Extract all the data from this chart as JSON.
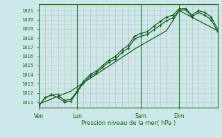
{
  "bg_color": "#cce8e8",
  "grid_color_minor": "#c8a0a0",
  "grid_color_major": "#a8c8c8",
  "line_color": "#1a5c1a",
  "xlabel": "Pression niveau de la mer( hPa )",
  "xlabel_color": "#1a5c1a",
  "tick_color": "#1a5c1a",
  "axis_color": "#2a6b2a",
  "ylim": [
    1010.4,
    1021.7
  ],
  "yticks": [
    1011,
    1012,
    1013,
    1014,
    1015,
    1016,
    1017,
    1018,
    1019,
    1020,
    1021
  ],
  "day_labels": [
    "Ven",
    "Lun",
    "Sam",
    "Dim"
  ],
  "day_positions": [
    0,
    3,
    8,
    11
  ],
  "total_steps": 14,
  "series1_x": [
    0,
    0.5,
    1.0,
    1.5,
    2.0,
    2.5,
    3.0,
    3.5,
    4.0,
    4.5,
    5.0,
    5.5,
    6.0,
    6.5,
    7.0,
    7.5,
    8.0,
    8.5,
    9.0,
    9.5,
    10.0,
    10.5,
    11.0,
    11.5,
    12.0,
    12.5,
    13.0,
    13.5,
    14.0
  ],
  "series1_y": [
    1010.6,
    1011.5,
    1011.8,
    1011.8,
    1011.2,
    1011.3,
    1012.2,
    1013.3,
    1014.0,
    1014.4,
    1015.0,
    1015.6,
    1016.0,
    1016.7,
    1017.2,
    1018.2,
    1018.5,
    1018.7,
    1019.3,
    1019.8,
    1020.3,
    1020.5,
    1021.2,
    1021.2,
    1020.5,
    1021.0,
    1020.8,
    1020.3,
    1019.0
  ],
  "series2_x": [
    0,
    0.5,
    1.0,
    1.5,
    2.0,
    2.5,
    3.0,
    3.5,
    4.0,
    4.5,
    5.0,
    5.5,
    6.0,
    6.5,
    7.0,
    7.5,
    8.0,
    8.5,
    9.0,
    9.5,
    10.0,
    10.5,
    11.0,
    11.5,
    12.0,
    12.5,
    13.0,
    13.5,
    14.0
  ],
  "series2_y": [
    1010.6,
    1011.5,
    1011.8,
    1011.5,
    1011.0,
    1011.1,
    1012.1,
    1013.1,
    1013.8,
    1014.2,
    1014.8,
    1015.4,
    1015.7,
    1016.4,
    1016.9,
    1017.9,
    1018.2,
    1018.4,
    1018.9,
    1019.4,
    1019.9,
    1020.2,
    1021.0,
    1021.1,
    1020.3,
    1020.8,
    1020.5,
    1020.0,
    1018.7
  ],
  "series3_x": [
    0,
    2.5,
    5.0,
    7.5,
    10.0,
    11.0,
    14.0
  ],
  "series3_y": [
    1010.8,
    1012.2,
    1014.5,
    1016.8,
    1018.8,
    1021.0,
    1018.8
  ]
}
